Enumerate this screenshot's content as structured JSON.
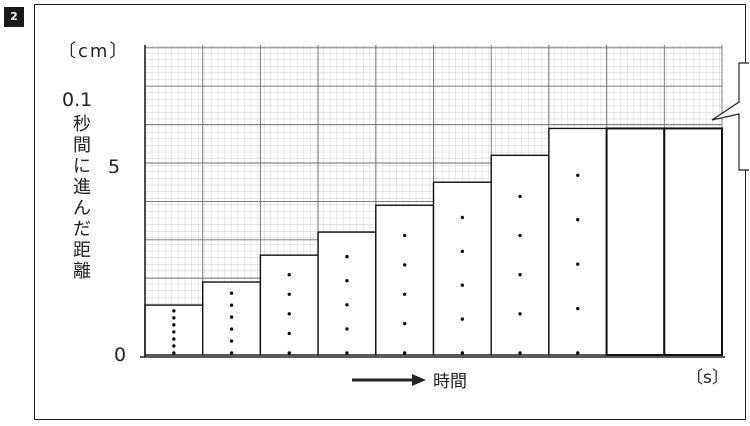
{
  "figure": {
    "number": "2"
  },
  "chart_data": {
    "type": "bar",
    "ylabel_unit": "〔cm〕",
    "ylabel": "0.1秒間に進んだ距離",
    "ylabel_prefix": "0.1",
    "ylabel_chars": [
      "秒",
      "間",
      "に",
      "進",
      "ん",
      "だ",
      "距",
      "離"
    ],
    "xlabel": "時間",
    "xlabel_unit": "〔s〕",
    "y_ticks": [
      "0",
      "5"
    ],
    "ylim": [
      0,
      8
    ],
    "values": [
      1.3,
      1.9,
      2.6,
      3.2,
      3.9,
      4.5,
      5.2,
      5.9,
      5.9,
      5.9
    ],
    "dots_per_bar": [
      7,
      6,
      5,
      5,
      5,
      5,
      5,
      5,
      0,
      0
    ],
    "grid": true
  },
  "callout": {
    "lines": [
      "",
      "〔",
      "〔"
    ]
  }
}
